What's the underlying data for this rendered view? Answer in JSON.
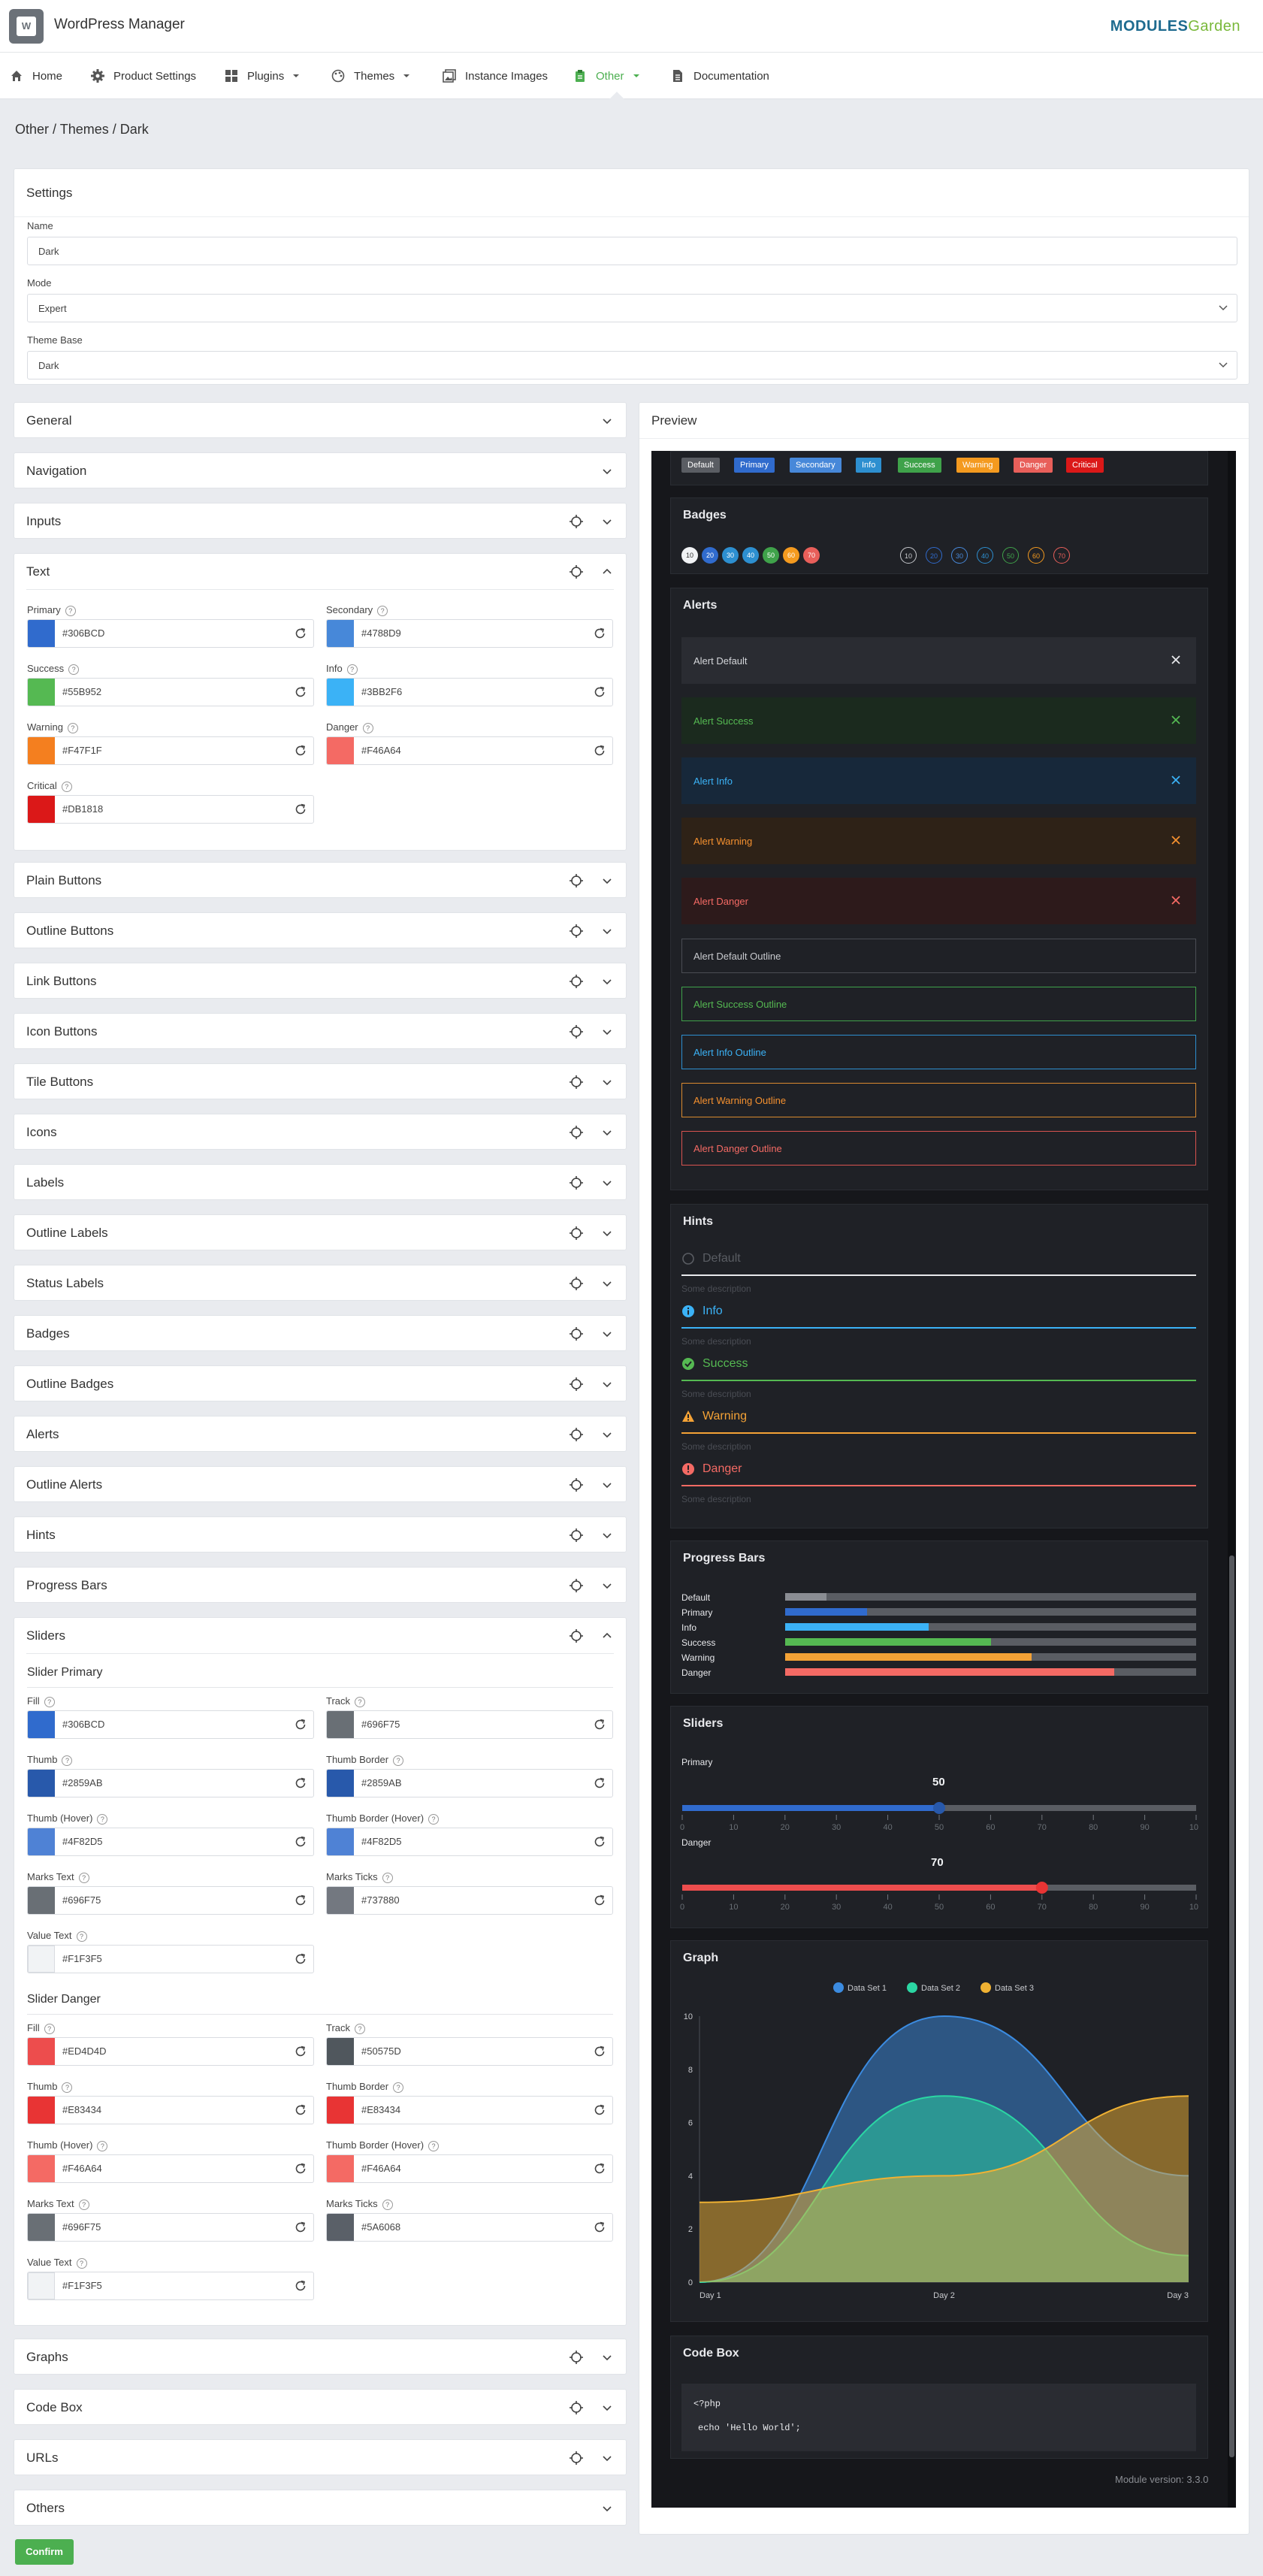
{
  "app": {
    "title": "WordPress Manager",
    "brand_logo_a": "M",
    "brand_logo_b": "ODULES",
    "brand_logo_c": "Garden"
  },
  "nav": {
    "items": [
      "Home",
      "Product Settings",
      "Plugins",
      "Themes",
      "Instance Images",
      "Other",
      "Documentation"
    ],
    "active": "Other"
  },
  "breadcrumb": "Other  /  Themes  /  Dark",
  "settings": {
    "title": "Settings",
    "name_label": "Name",
    "name_value": "Dark",
    "mode_label": "Mode",
    "mode_value": "Expert",
    "base_label": "Theme Base",
    "base_value": "Dark"
  },
  "sections": {
    "general": "General",
    "navigation": "Navigation",
    "inputs": "Inputs",
    "text": "Text",
    "plain_buttons": "Plain Buttons",
    "outline_buttons": "Outline Buttons",
    "link_buttons": "Link Buttons",
    "icon_buttons": "Icon Buttons",
    "tile_buttons": "Tile Buttons",
    "icons": "Icons",
    "labels": "Labels",
    "outline_labels": "Outline Labels",
    "status_labels": "Status Labels",
    "badges": "Badges",
    "outline_badges": "Outline Badges",
    "alerts": "Alerts",
    "outline_alerts": "Outline Alerts",
    "hints": "Hints",
    "progress_bars": "Progress Bars",
    "sliders": "Sliders",
    "graphs": "Graphs",
    "code_box": "Code Box",
    "urls": "URLs",
    "others": "Others"
  },
  "text_colors": [
    {
      "label": "Primary",
      "hex": "#306BCD"
    },
    {
      "label": "Secondary",
      "hex": "#4788D9"
    },
    {
      "label": "Success",
      "hex": "#55B952"
    },
    {
      "label": "Info",
      "hex": "#3BB2F6"
    },
    {
      "label": "Warning",
      "hex": "#F47F1F"
    },
    {
      "label": "Danger",
      "hex": "#F46A64"
    },
    {
      "label": "Critical",
      "hex": "#DB1818"
    }
  ],
  "slider_primary": {
    "title": "Slider Primary",
    "fields": [
      {
        "label": "Fill",
        "hex": "#306BCD"
      },
      {
        "label": "Track",
        "hex": "#696F75"
      },
      {
        "label": "Thumb",
        "hex": "#2859AB"
      },
      {
        "label": "Thumb Border",
        "hex": "#2859AB"
      },
      {
        "label": "Thumb (Hover)",
        "hex": "#4F82D5"
      },
      {
        "label": "Thumb Border (Hover)",
        "hex": "#4F82D5"
      },
      {
        "label": "Marks Text",
        "hex": "#696F75"
      },
      {
        "label": "Marks Ticks",
        "hex": "#737880"
      },
      {
        "label": "Value Text",
        "hex": "#F1F3F5"
      }
    ]
  },
  "slider_danger": {
    "title": "Slider Danger",
    "fields": [
      {
        "label": "Fill",
        "hex": "#ED4D4D"
      },
      {
        "label": "Track",
        "hex": "#50575D"
      },
      {
        "label": "Thumb",
        "hex": "#E83434"
      },
      {
        "label": "Thumb Border",
        "hex": "#E83434"
      },
      {
        "label": "Thumb (Hover)",
        "hex": "#F46A64"
      },
      {
        "label": "Thumb Border (Hover)",
        "hex": "#F46A64"
      },
      {
        "label": "Marks Text",
        "hex": "#696F75"
      },
      {
        "label": "Marks Ticks",
        "hex": "#5A6068"
      },
      {
        "label": "Value Text",
        "hex": "#F1F3F5"
      }
    ]
  },
  "preview": {
    "title": "Preview",
    "buttons": [
      {
        "label": "Default",
        "color": "#5a5d63"
      },
      {
        "label": "Primary",
        "color": "#306bcd"
      },
      {
        "label": "Secondary",
        "color": "#4788d9"
      },
      {
        "label": "Info",
        "color": "#2d8fd0"
      },
      {
        "label": "Success",
        "color": "#3fa24a"
      },
      {
        "label": "Warning",
        "color": "#f49a1f"
      },
      {
        "label": "Danger",
        "color": "#e85f5a"
      },
      {
        "label": "Critical",
        "color": "#db1818"
      }
    ],
    "badges_title": "Badges",
    "badges": [
      "10",
      "20",
      "30",
      "40",
      "50",
      "60",
      "70"
    ],
    "badges_outline": [
      "10",
      "20",
      "30",
      "40",
      "50",
      "60",
      "70"
    ],
    "alerts_title": "Alerts",
    "alerts": [
      "Alert Default",
      "Alert Success",
      "Alert Info",
      "Alert Warning",
      "Alert Danger"
    ],
    "alerts_outline": [
      "Alert Default Outline",
      "Alert Success Outline",
      "Alert Info Outline",
      "Alert Warning Outline",
      "Alert Danger Outline"
    ],
    "hints_title": "Hints",
    "hints": [
      {
        "title": "Default",
        "desc": "Some description"
      },
      {
        "title": "Info",
        "desc": "Some description"
      },
      {
        "title": "Success",
        "desc": "Some description"
      },
      {
        "title": "Warning",
        "desc": "Some description"
      },
      {
        "title": "Danger",
        "desc": "Some description"
      }
    ],
    "progress_title": "Progress Bars",
    "progress": [
      {
        "label": "Default",
        "value": 0.1
      },
      {
        "label": "Primary",
        "value": 0.2
      },
      {
        "label": "Info",
        "value": 0.35
      },
      {
        "label": "Success",
        "value": 0.5
      },
      {
        "label": "Warning",
        "value": 0.6
      },
      {
        "label": "Danger",
        "value": 0.8
      }
    ],
    "sliders_title": "Sliders",
    "slider_primary_label": "Primary",
    "slider_primary_value": "50",
    "slider_danger_label": "Danger",
    "slider_danger_value": "70",
    "slider_marks": [
      "0",
      "10",
      "20",
      "30",
      "40",
      "50",
      "60",
      "70",
      "80",
      "90",
      "100"
    ],
    "graph_title": "Graph",
    "code_title": "Code Box",
    "code_line1": "<?php",
    "code_line2": "echo 'Hello World';",
    "version": "Module version: 3.3.0"
  },
  "chart_data": {
    "type": "area",
    "x": [
      "Day 1",
      "Day 2",
      "Day 3"
    ],
    "series": [
      {
        "name": "Data Set 1",
        "values": [
          0,
          10,
          4
        ]
      },
      {
        "name": "Data Set 2",
        "values": [
          0,
          7,
          1
        ]
      },
      {
        "name": "Data Set 3",
        "values": [
          3,
          4,
          7
        ]
      }
    ],
    "ylim": [
      0,
      10
    ],
    "yticks": [
      "0",
      "2",
      "4",
      "6",
      "8",
      "10"
    ],
    "legend": "top-center",
    "colors": [
      "#3b8be0",
      "#2bd6a3",
      "#f0b233"
    ]
  },
  "confirm_label": "Confirm"
}
